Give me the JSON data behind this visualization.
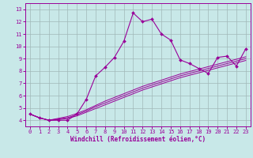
{
  "xlabel": "Windchill (Refroidissement éolien,°C)",
  "x": [
    0,
    1,
    2,
    3,
    4,
    5,
    6,
    7,
    8,
    9,
    10,
    11,
    12,
    13,
    14,
    15,
    16,
    17,
    18,
    19,
    20,
    21,
    22,
    23
  ],
  "main_line": [
    4.5,
    4.2,
    4.0,
    4.0,
    4.0,
    4.5,
    5.7,
    7.6,
    8.3,
    9.1,
    10.4,
    12.7,
    12.0,
    12.2,
    11.0,
    10.5,
    8.9,
    8.6,
    8.2,
    7.8,
    9.1,
    9.2,
    8.4,
    9.8
  ],
  "ref_lines": [
    [
      4.5,
      4.2,
      4.0,
      4.05,
      4.15,
      4.35,
      4.65,
      4.95,
      5.25,
      5.55,
      5.85,
      6.15,
      6.45,
      6.7,
      6.95,
      7.2,
      7.45,
      7.65,
      7.85,
      8.05,
      8.25,
      8.45,
      8.65,
      8.85
    ],
    [
      4.5,
      4.2,
      4.0,
      4.1,
      4.2,
      4.45,
      4.75,
      5.1,
      5.4,
      5.7,
      6.0,
      6.3,
      6.6,
      6.85,
      7.1,
      7.35,
      7.6,
      7.8,
      8.0,
      8.2,
      8.4,
      8.6,
      8.8,
      9.0
    ],
    [
      4.5,
      4.2,
      4.0,
      4.15,
      4.3,
      4.55,
      4.85,
      5.2,
      5.55,
      5.85,
      6.15,
      6.45,
      6.75,
      7.0,
      7.25,
      7.5,
      7.75,
      7.95,
      8.15,
      8.35,
      8.55,
      8.75,
      8.95,
      9.15
    ]
  ],
  "line_color": "#990099",
  "bg_color": "#c8e8e8",
  "grid_color": "#a0b8b8",
  "ylim": [
    3.5,
    13.5
  ],
  "xlim": [
    -0.5,
    23.5
  ],
  "yticks": [
    4,
    5,
    6,
    7,
    8,
    9,
    10,
    11,
    12,
    13
  ],
  "xticks": [
    0,
    1,
    2,
    3,
    4,
    5,
    6,
    7,
    8,
    9,
    10,
    11,
    12,
    13,
    14,
    15,
    16,
    17,
    18,
    19,
    20,
    21,
    22,
    23
  ]
}
